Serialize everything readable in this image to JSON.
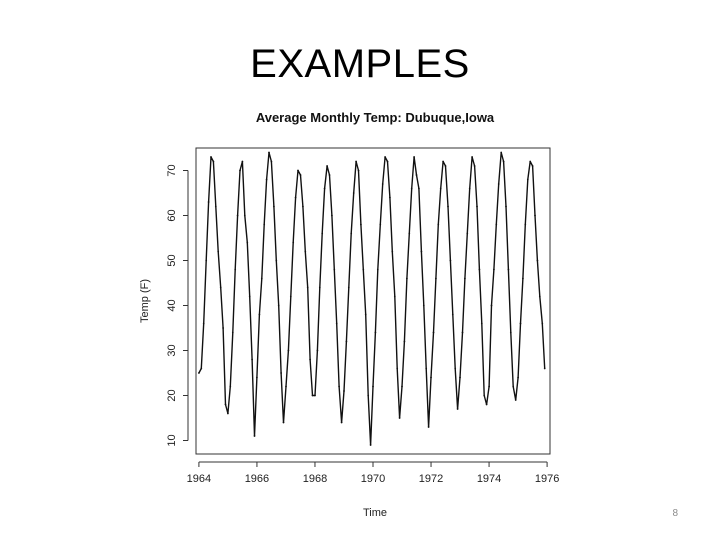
{
  "slide": {
    "title": "EXAMPLES",
    "page_number": "8"
  },
  "chart_data": {
    "type": "line",
    "title": "Average Monthly Temp: Dubuque,Iowa",
    "xlabel": "Time",
    "ylabel": "Temp (F)",
    "xlim": [
      1963.9,
      1976.1
    ],
    "ylim": [
      7,
      75
    ],
    "xticks": [
      1964,
      1966,
      1968,
      1970,
      1972,
      1974,
      1976
    ],
    "yticks": [
      10,
      20,
      30,
      40,
      50,
      60,
      70
    ],
    "grid": false,
    "series": [
      {
        "x_start": 1964,
        "x_step": 0.0833333,
        "values": [
          25,
          26,
          36,
          50,
          63,
          73,
          72,
          62,
          52,
          44,
          35,
          18,
          16,
          22,
          34,
          48,
          60,
          70,
          72,
          60,
          54,
          42,
          28,
          11,
          24,
          38,
          46,
          58,
          68,
          74,
          72,
          62,
          50,
          40,
          25,
          14,
          22,
          30,
          42,
          54,
          64,
          70,
          69,
          62,
          52,
          44,
          28,
          20,
          20,
          30,
          44,
          56,
          66,
          71,
          69,
          60,
          48,
          36,
          22,
          14,
          21,
          32,
          44,
          56,
          65,
          72,
          70,
          58,
          48,
          38,
          20,
          9,
          22,
          34,
          48,
          58,
          67,
          73,
          72,
          64,
          52,
          42,
          26,
          15,
          22,
          32,
          46,
          56,
          66,
          73,
          69,
          66,
          52,
          40,
          26,
          13,
          24,
          34,
          46,
          58,
          66,
          72,
          71,
          62,
          50,
          38,
          26,
          17,
          24,
          34,
          46,
          56,
          66,
          73,
          71,
          62,
          48,
          36,
          20,
          18,
          22,
          40,
          48,
          58,
          67,
          74,
          72,
          62,
          48,
          34,
          22,
          19,
          24,
          36,
          46,
          58,
          68,
          72,
          71,
          60,
          50,
          42,
          36,
          26
        ]
      }
    ]
  }
}
